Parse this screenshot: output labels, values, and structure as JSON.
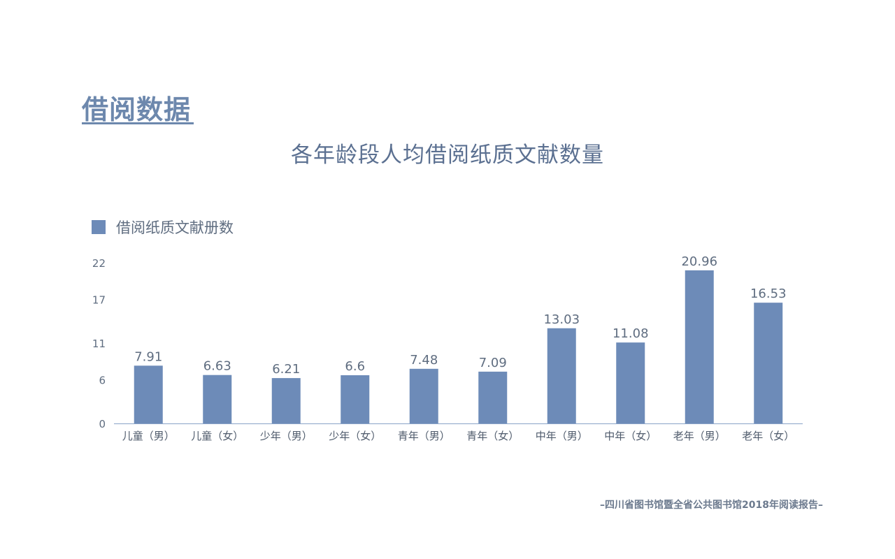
{
  "header": {
    "section_title": "借阅数据"
  },
  "footer": {
    "source": "–四川省图书馆暨全省公共图书馆2018年阅读报告–"
  },
  "chart_data": {
    "type": "bar",
    "title": "各年龄段人均借阅纸质文献数量",
    "legend_position": "top-left",
    "grid": false,
    "ylim": [
      0,
      22
    ],
    "yticks": [
      "22",
      "17",
      "11",
      "6",
      "0"
    ],
    "categories": [
      "儿童（男）",
      "儿童（女）",
      "少年（男）",
      "少年（女）",
      "青年（男）",
      "青年（女）",
      "中年（男）",
      "中年（女）",
      "老年（男）",
      "老年（女）"
    ],
    "series": [
      {
        "name": "借阅纸质文献册数",
        "color": "#6d8bb8",
        "values": [
          7.91,
          6.63,
          6.21,
          6.6,
          7.48,
          7.09,
          13.03,
          11.08,
          20.96,
          16.53
        ],
        "labels": [
          "7.91",
          "6.63",
          "6.21",
          "6.6",
          "7.48",
          "7.09",
          "13.03",
          "11.08",
          "20.96",
          "16.53"
        ]
      }
    ]
  }
}
